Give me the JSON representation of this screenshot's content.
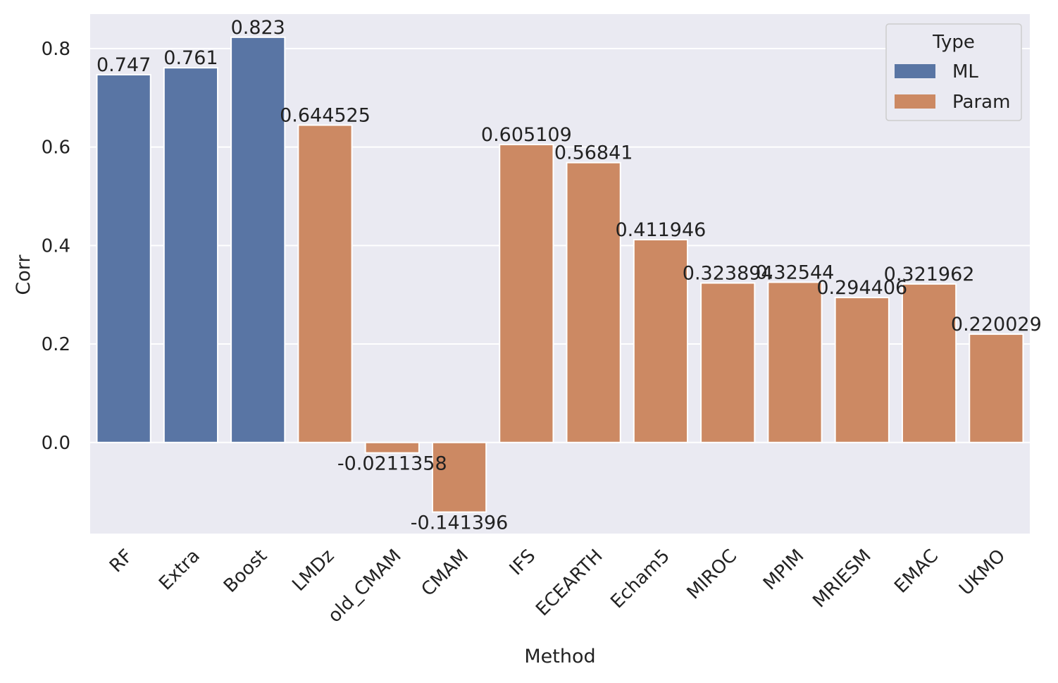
{
  "chart_data": {
    "type": "bar",
    "xlabel": "Method",
    "ylabel": "Corr",
    "categories": [
      "RF",
      "Extra",
      "Boost",
      "LMDz",
      "old_CMAM",
      "CMAM",
      "IFS",
      "ECEARTH",
      "Echam5",
      "MIROC",
      "MPIM",
      "MRIESM",
      "EMAC",
      "UKMO"
    ],
    "values": [
      0.747,
      0.761,
      0.823,
      0.644525,
      -0.0211358,
      -0.141396,
      0.605109,
      0.56841,
      0.411946,
      0.323894,
      0.32544,
      0.294406,
      0.321962,
      0.220029
    ],
    "value_labels": [
      "0.747",
      "0.761",
      "0.823",
      "0.644525",
      "-0.0211358",
      "-0.141396",
      "0.605109",
      "0.56841",
      "0.411946",
      "0.323894",
      "0.32544",
      "0.294406",
      "0.321962",
      "0.220029"
    ],
    "types": [
      "ML",
      "ML",
      "ML",
      "Param",
      "Param",
      "Param",
      "Param",
      "Param",
      "Param",
      "Param",
      "Param",
      "Param",
      "Param",
      "Param"
    ],
    "ylim": [
      -0.185,
      0.87
    ],
    "yticks": [
      "0.0",
      "0.2",
      "0.4",
      "0.6",
      "0.8"
    ],
    "ytick_values": [
      0.0,
      0.2,
      0.4,
      0.6,
      0.8
    ],
    "grid": true,
    "legend": {
      "title": "Type",
      "placement": "top-right",
      "entries": [
        {
          "name": "ML",
          "color": "#5975a4"
        },
        {
          "name": "Param",
          "color": "#cc8963"
        }
      ]
    },
    "colors": {
      "ML": "#5975a4",
      "Param": "#cc8963",
      "background": "#eaeaf2",
      "grid": "#ffffff"
    }
  }
}
